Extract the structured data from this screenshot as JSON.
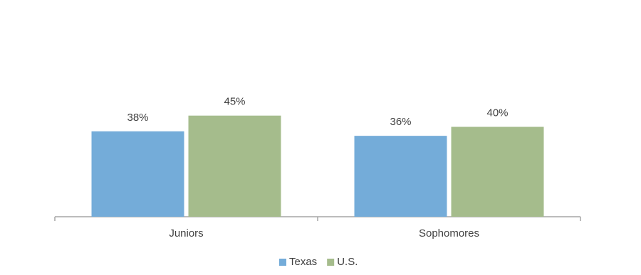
{
  "chart_data": {
    "type": "bar",
    "categories": [
      "Juniors",
      "Sophomores"
    ],
    "series": [
      {
        "name": "Texas",
        "color": "#74acd9",
        "values": [
          38,
          36
        ],
        "value_labels": [
          "38%",
          "36%"
        ]
      },
      {
        "name": "U.S.",
        "color": "#a5bc8c",
        "values": [
          45,
          40
        ],
        "value_labels": [
          "45%",
          "40%"
        ]
      }
    ],
    "ylim": [
      0,
      80
    ],
    "legend": "bottom"
  }
}
